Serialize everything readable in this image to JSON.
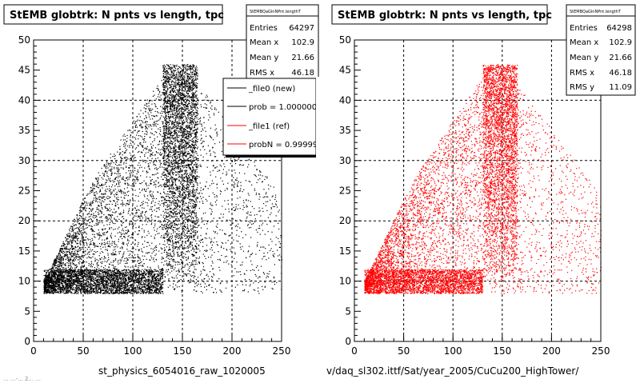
{
  "colors": {
    "new": "#000000",
    "ref": "#ff0000",
    "background": "#ffffff",
    "frame": "#000000"
  },
  "footer_left": "st_physics_6054016_raw_1020005",
  "footer_right": "v/daq_sl302.ittf/Sat/year_2005/CuCu200_HighTower/",
  "footer_corner": "... ...-... 2... ...",
  "chart_data": [
    {
      "type": "scatter",
      "title": "StEMB globtrk: N pnts vs length, tpc",
      "xlabel": "",
      "ylabel": "",
      "xlim": [
        0,
        250
      ],
      "ylim": [
        0,
        50
      ],
      "xticks": [
        0,
        50,
        100,
        150,
        200,
        250
      ],
      "yticks": [
        0,
        5,
        10,
        15,
        20,
        25,
        30,
        35,
        40,
        45,
        50
      ],
      "grid": true,
      "series_color": "#000000",
      "stats": {
        "name": "StEMBQaGlnNPnt.lengthT",
        "rows": [
          {
            "label": "Entries",
            "value": "64297"
          },
          {
            "label": "Mean x",
            "value": "102.9"
          },
          {
            "label": "Mean y",
            "value": "21.66"
          },
          {
            "label": "RMS x",
            "value": "46.18"
          }
        ]
      },
      "legend": {
        "position": "top-right",
        "entries": [
          {
            "label": "_file0 (new)",
            "color": "#000000"
          },
          {
            "label": "prob = 1.000000",
            "color": "#000000"
          },
          {
            "label": "_file1 (ref)",
            "color": "#ff0000"
          },
          {
            "label": "probN = 0.999999",
            "color": "#ff0000"
          }
        ]
      },
      "density_model": {
        "x_range": [
          10,
          250
        ],
        "y_range": [
          8,
          46
        ],
        "y_floor": 8,
        "dense_core": {
          "x": [
            10,
            130
          ],
          "y": [
            8,
            12
          ]
        },
        "upper_band": {
          "x": [
            130,
            165
          ],
          "y": [
            10,
            46
          ]
        },
        "diagonal_edge": [
          [
            10,
            10
          ],
          [
            60,
            27
          ],
          [
            130,
            44
          ]
        ]
      }
    },
    {
      "type": "scatter",
      "title": "StEMB globtrk: N pnts vs length, tpc",
      "xlabel": "",
      "ylabel": "",
      "xlim": [
        0,
        250
      ],
      "ylim": [
        0,
        50
      ],
      "xticks": [
        0,
        50,
        100,
        150,
        200,
        250
      ],
      "yticks": [
        0,
        5,
        10,
        15,
        20,
        25,
        30,
        35,
        40,
        45,
        50
      ],
      "grid": true,
      "series_color": "#ff0000",
      "stats": {
        "name": "StEMBQaGlnNPnt.lengthT",
        "rows": [
          {
            "label": "Entries",
            "value": "64298"
          },
          {
            "label": "Mean x",
            "value": "102.9"
          },
          {
            "label": "Mean y",
            "value": "21.66"
          },
          {
            "label": "RMS x",
            "value": "46.18"
          },
          {
            "label": "RMS y",
            "value": "11.09"
          }
        ]
      },
      "density_model": {
        "x_range": [
          10,
          250
        ],
        "y_range": [
          8,
          46
        ],
        "y_floor": 8,
        "dense_core": {
          "x": [
            10,
            130
          ],
          "y": [
            8,
            12
          ]
        },
        "upper_band": {
          "x": [
            130,
            165
          ],
          "y": [
            10,
            46
          ]
        },
        "diagonal_edge": [
          [
            10,
            10
          ],
          [
            60,
            27
          ],
          [
            130,
            44
          ]
        ]
      }
    }
  ]
}
